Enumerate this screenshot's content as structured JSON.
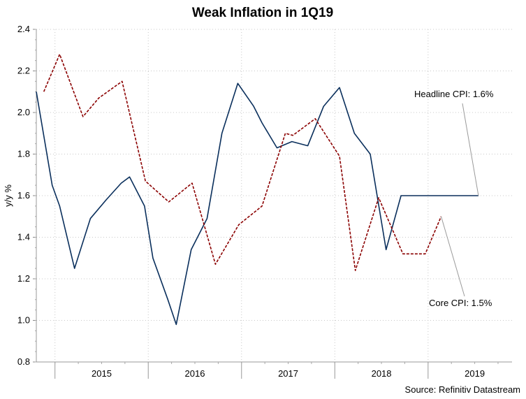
{
  "chart_data": {
    "type": "line",
    "title": "Weak Inflation in 1Q19",
    "ylabel": "y/y %",
    "xlabel": "",
    "ylim": [
      0.8,
      2.4
    ],
    "yticks": [
      0.8,
      1.0,
      1.2,
      1.4,
      1.6,
      1.8,
      2.0,
      2.2,
      2.4
    ],
    "ytick_labels": [
      "0.8",
      "1.0",
      "1.2",
      "1.4",
      "1.6",
      "1.8",
      "2.0",
      "2.2",
      "2.4"
    ],
    "xlim": [
      2014.3,
      2019.4
    ],
    "xticks": [
      2015,
      2016,
      2017,
      2018,
      2019
    ],
    "xtick_labels": [
      "2015",
      "2016",
      "2017",
      "2018",
      "2019"
    ],
    "grid": true,
    "series": [
      {
        "name": "Headline CPI",
        "color": "#0a2f5c",
        "dash": "solid",
        "x": [
          2014.3,
          2014.47,
          2014.55,
          2014.71,
          2014.88,
          2015.05,
          2015.21,
          2015.3,
          2015.46,
          2015.55,
          2015.71,
          2015.8,
          2015.96,
          2016.13,
          2016.29,
          2016.46,
          2016.63,
          2016.72,
          2016.88,
          2017.04,
          2017.21,
          2017.38,
          2017.55,
          2017.71,
          2017.88,
          2018.05,
          2018.21,
          2018.38,
          2018.54,
          2018.71,
          2018.88,
          2019.04
        ],
        "y": [
          2.1,
          1.65,
          1.55,
          1.25,
          1.49,
          1.58,
          1.66,
          1.69,
          1.55,
          1.3,
          1.1,
          0.98,
          1.34,
          1.49,
          1.9,
          2.14,
          2.03,
          1.95,
          1.83,
          1.86,
          1.84,
          2.03,
          2.12,
          1.9,
          1.8,
          1.34,
          1.6,
          1.6,
          1.6,
          1.6,
          1.6,
          1.6
        ]
      },
      {
        "name": "Core CPI",
        "color": "#8b0000",
        "dash": "dashed",
        "x": [
          2014.38,
          2014.55,
          2014.8,
          2014.97,
          2015.22,
          2015.47,
          2015.72,
          2015.97,
          2016.22,
          2016.47,
          2016.72,
          2016.97,
          2017.05,
          2017.29,
          2017.55,
          2017.72,
          2017.97,
          2018.23,
          2018.47,
          2018.64
        ],
        "y": [
          2.1,
          2.28,
          1.98,
          2.07,
          2.15,
          1.67,
          1.57,
          1.66,
          1.27,
          1.46,
          1.55,
          1.9,
          1.89,
          1.97,
          1.79,
          1.24,
          1.59,
          1.32,
          1.32,
          1.5
        ]
      }
    ],
    "annotations": [
      {
        "text": "Headline CPI: 1.6%",
        "series": "Headline CPI"
      },
      {
        "text": "Core CPI: 1.5%",
        "series": "Core CPI"
      }
    ],
    "source": "Source: Refinitiv Datastream"
  }
}
